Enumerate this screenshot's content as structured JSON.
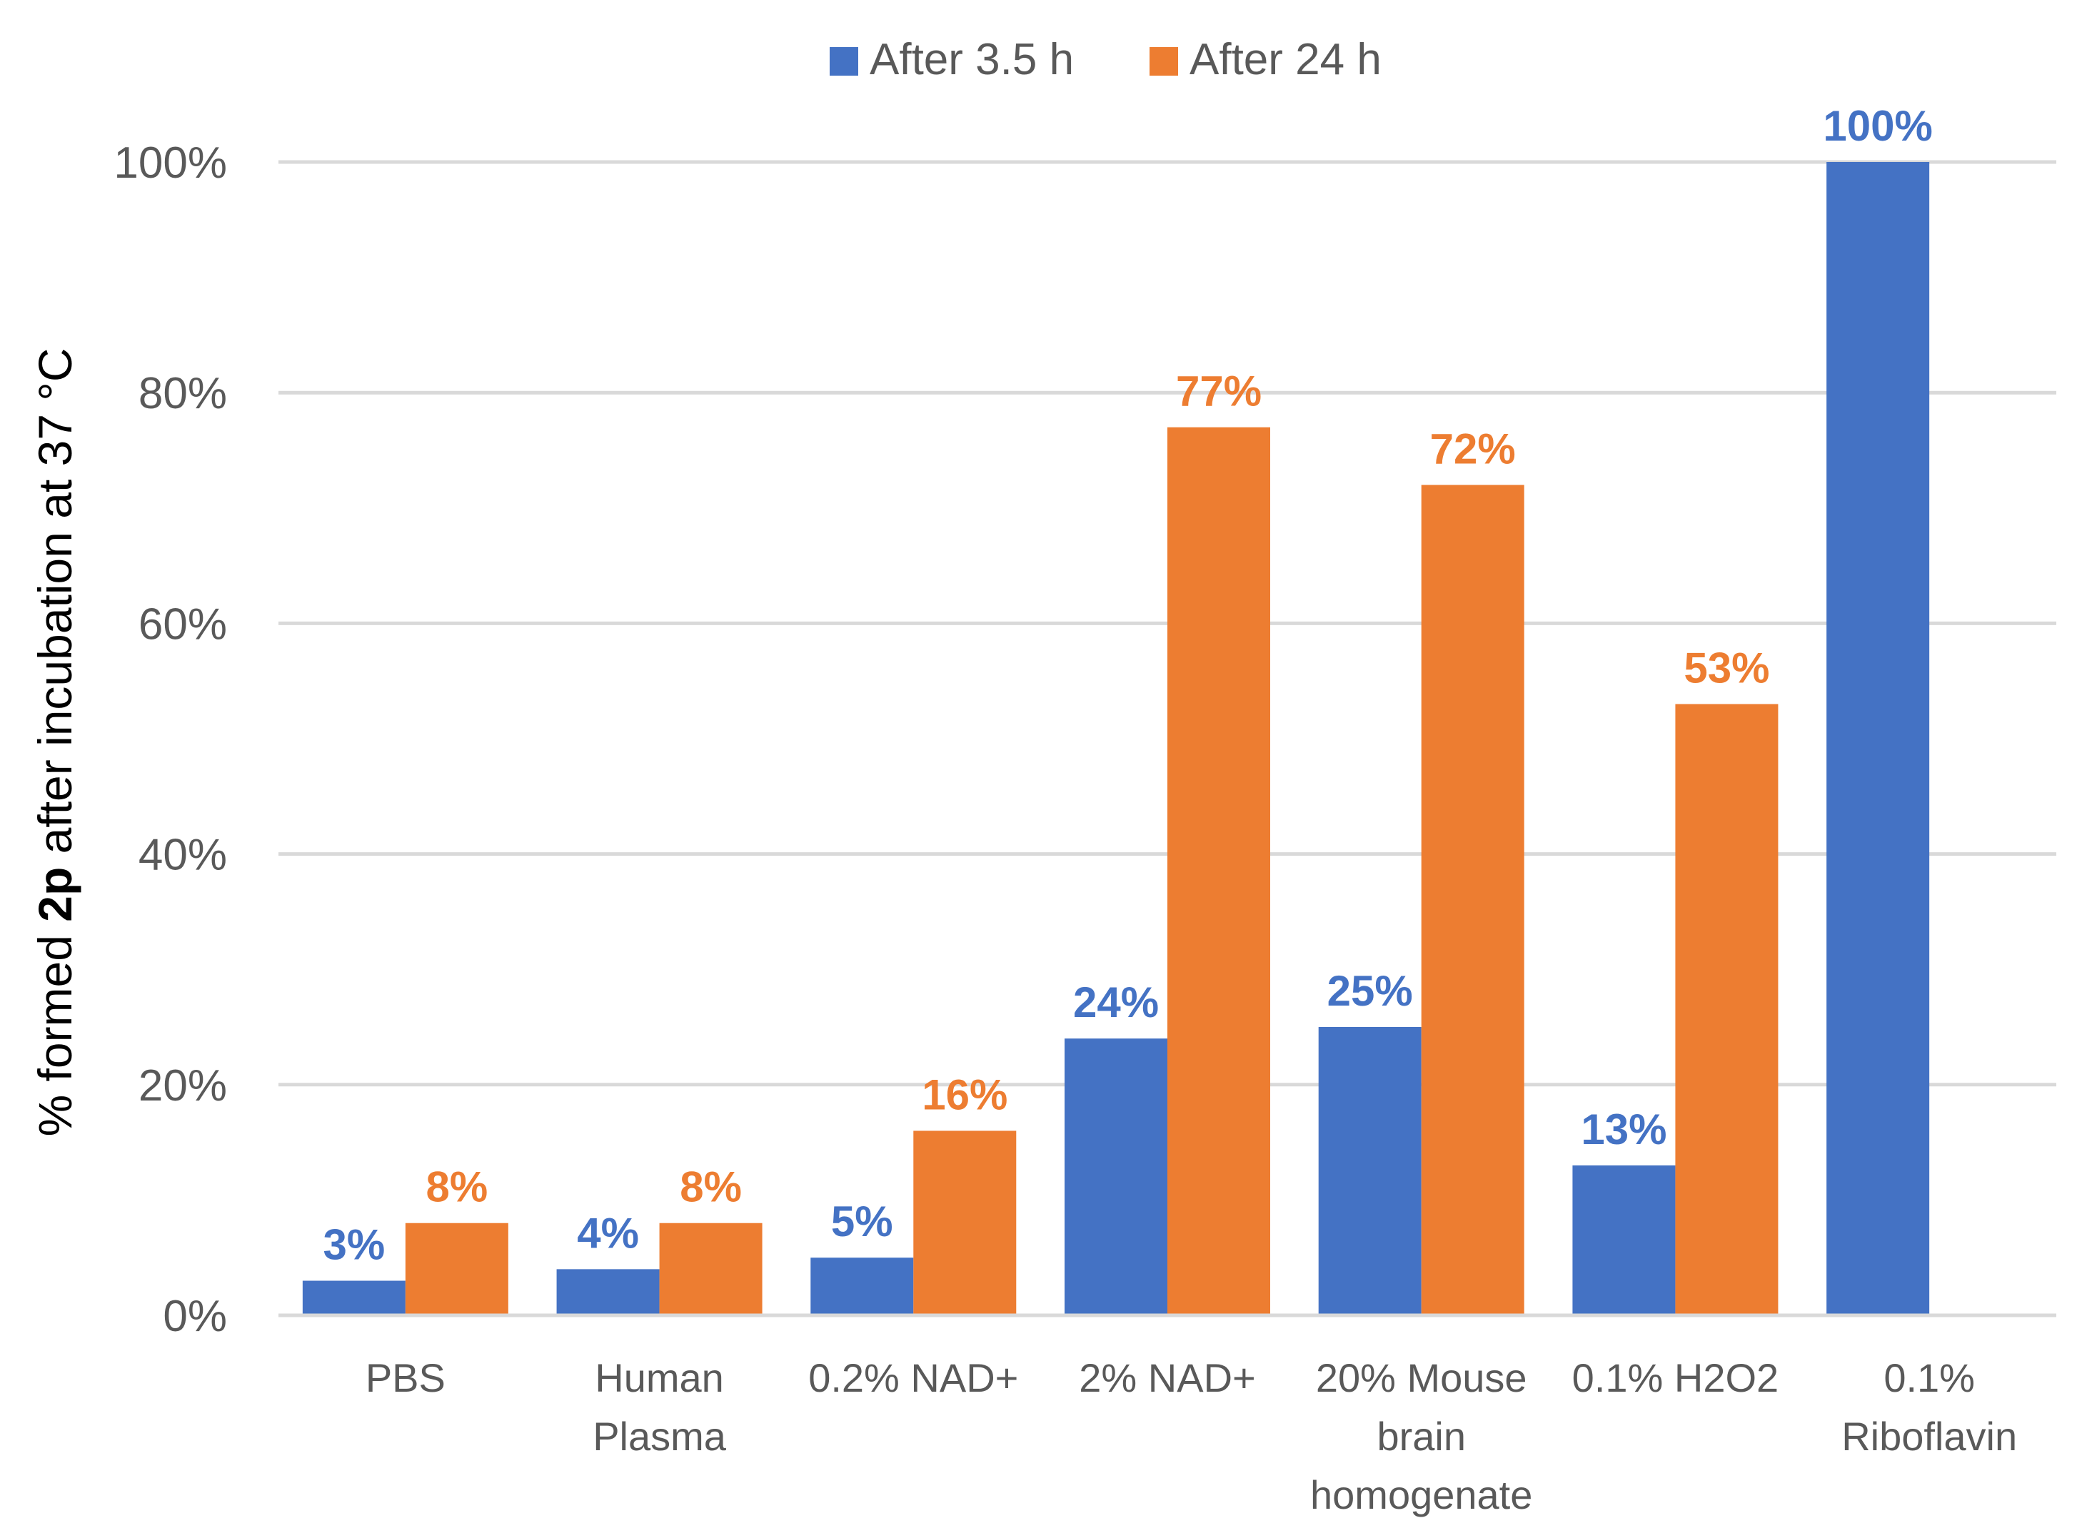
{
  "chart_data": {
    "type": "bar",
    "title": "",
    "xlabel": "",
    "ylabel": {
      "prefix": "% formed ",
      "bold": "2p",
      "suffix": " after incubation at 37 °C"
    },
    "categories": [
      [
        "PBS"
      ],
      [
        "Human",
        "Plasma"
      ],
      [
        "0.2% NAD+"
      ],
      [
        "2% NAD+"
      ],
      [
        "20% Mouse",
        "brain",
        "homogenate"
      ],
      [
        "0.1% H2O2"
      ],
      [
        "0.1%",
        "Riboflavin"
      ]
    ],
    "series": [
      {
        "name": "After 3.5 h",
        "color": "#4472C4",
        "values": [
          3,
          4,
          5,
          24,
          25,
          13,
          100
        ],
        "labels": [
          "3%",
          "4%",
          "5%",
          "24%",
          "25%",
          "13%",
          "100%"
        ]
      },
      {
        "name": "After 24 h",
        "color": "#ED7D31",
        "values": [
          8,
          8,
          16,
          77,
          72,
          53,
          null
        ],
        "labels": [
          "8%",
          "8%",
          "16%",
          "77%",
          "72%",
          "53%",
          null
        ]
      }
    ],
    "ylim": [
      0,
      100
    ],
    "yticks": [
      0,
      20,
      40,
      60,
      80,
      100
    ],
    "ytick_labels": [
      "0%",
      "20%",
      "40%",
      "60%",
      "80%",
      "100%"
    ],
    "grid": true,
    "legend_position": "top-center",
    "gridline_color": "#D9D9D9",
    "axis_text_color": "#595959"
  }
}
